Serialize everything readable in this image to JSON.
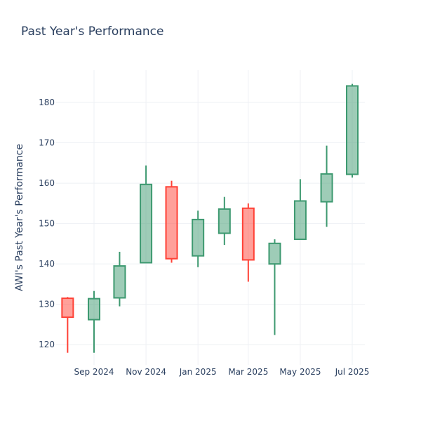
{
  "chart_data": {
    "type": "candlestick",
    "title": "Past Year's Performance",
    "xlabel": "",
    "ylabel": "AWI's Past Year's Performance",
    "ylim": [
      115,
      188
    ],
    "yticks": [
      120,
      130,
      140,
      150,
      160,
      170,
      180
    ],
    "xticks": [
      {
        "label": "Sep 2024",
        "date": "2024-09-01"
      },
      {
        "label": "Nov 2024",
        "date": "2024-11-01"
      },
      {
        "label": "Jan 2025",
        "date": "2025-01-01"
      },
      {
        "label": "Mar 2025",
        "date": "2025-03-01"
      },
      {
        "label": "May 2025",
        "date": "2025-05-01"
      },
      {
        "label": "Jul 2025",
        "date": "2025-07-01"
      }
    ],
    "grid": true,
    "increasing_color": "#3d9970",
    "decreasing_color": "#ff4136",
    "candles": [
      {
        "date": "2024-08-01",
        "open": 131.5,
        "high": 131.8,
        "low": 118.0,
        "close": 126.8
      },
      {
        "date": "2024-09-01",
        "open": 126.2,
        "high": 133.3,
        "low": 118.0,
        "close": 131.4
      },
      {
        "date": "2024-10-01",
        "open": 131.6,
        "high": 143.0,
        "low": 129.5,
        "close": 139.5
      },
      {
        "date": "2024-11-01",
        "open": 140.3,
        "high": 164.4,
        "low": 140.2,
        "close": 159.7
      },
      {
        "date": "2024-12-01",
        "open": 159.1,
        "high": 160.6,
        "low": 140.3,
        "close": 141.3
      },
      {
        "date": "2025-01-01",
        "open": 142.0,
        "high": 153.2,
        "low": 139.2,
        "close": 151.0
      },
      {
        "date": "2025-02-01",
        "open": 147.6,
        "high": 156.6,
        "low": 144.7,
        "close": 153.6
      },
      {
        "date": "2025-03-01",
        "open": 153.8,
        "high": 155.0,
        "low": 135.6,
        "close": 141.0
      },
      {
        "date": "2025-04-01",
        "open": 140.0,
        "high": 146.1,
        "low": 122.4,
        "close": 145.1
      },
      {
        "date": "2025-05-01",
        "open": 146.1,
        "high": 161.0,
        "low": 146.0,
        "close": 155.6
      },
      {
        "date": "2025-06-01",
        "open": 155.4,
        "high": 169.3,
        "low": 149.2,
        "close": 162.3
      },
      {
        "date": "2025-07-01",
        "open": 162.2,
        "high": 184.6,
        "low": 161.4,
        "close": 184.1
      }
    ]
  }
}
